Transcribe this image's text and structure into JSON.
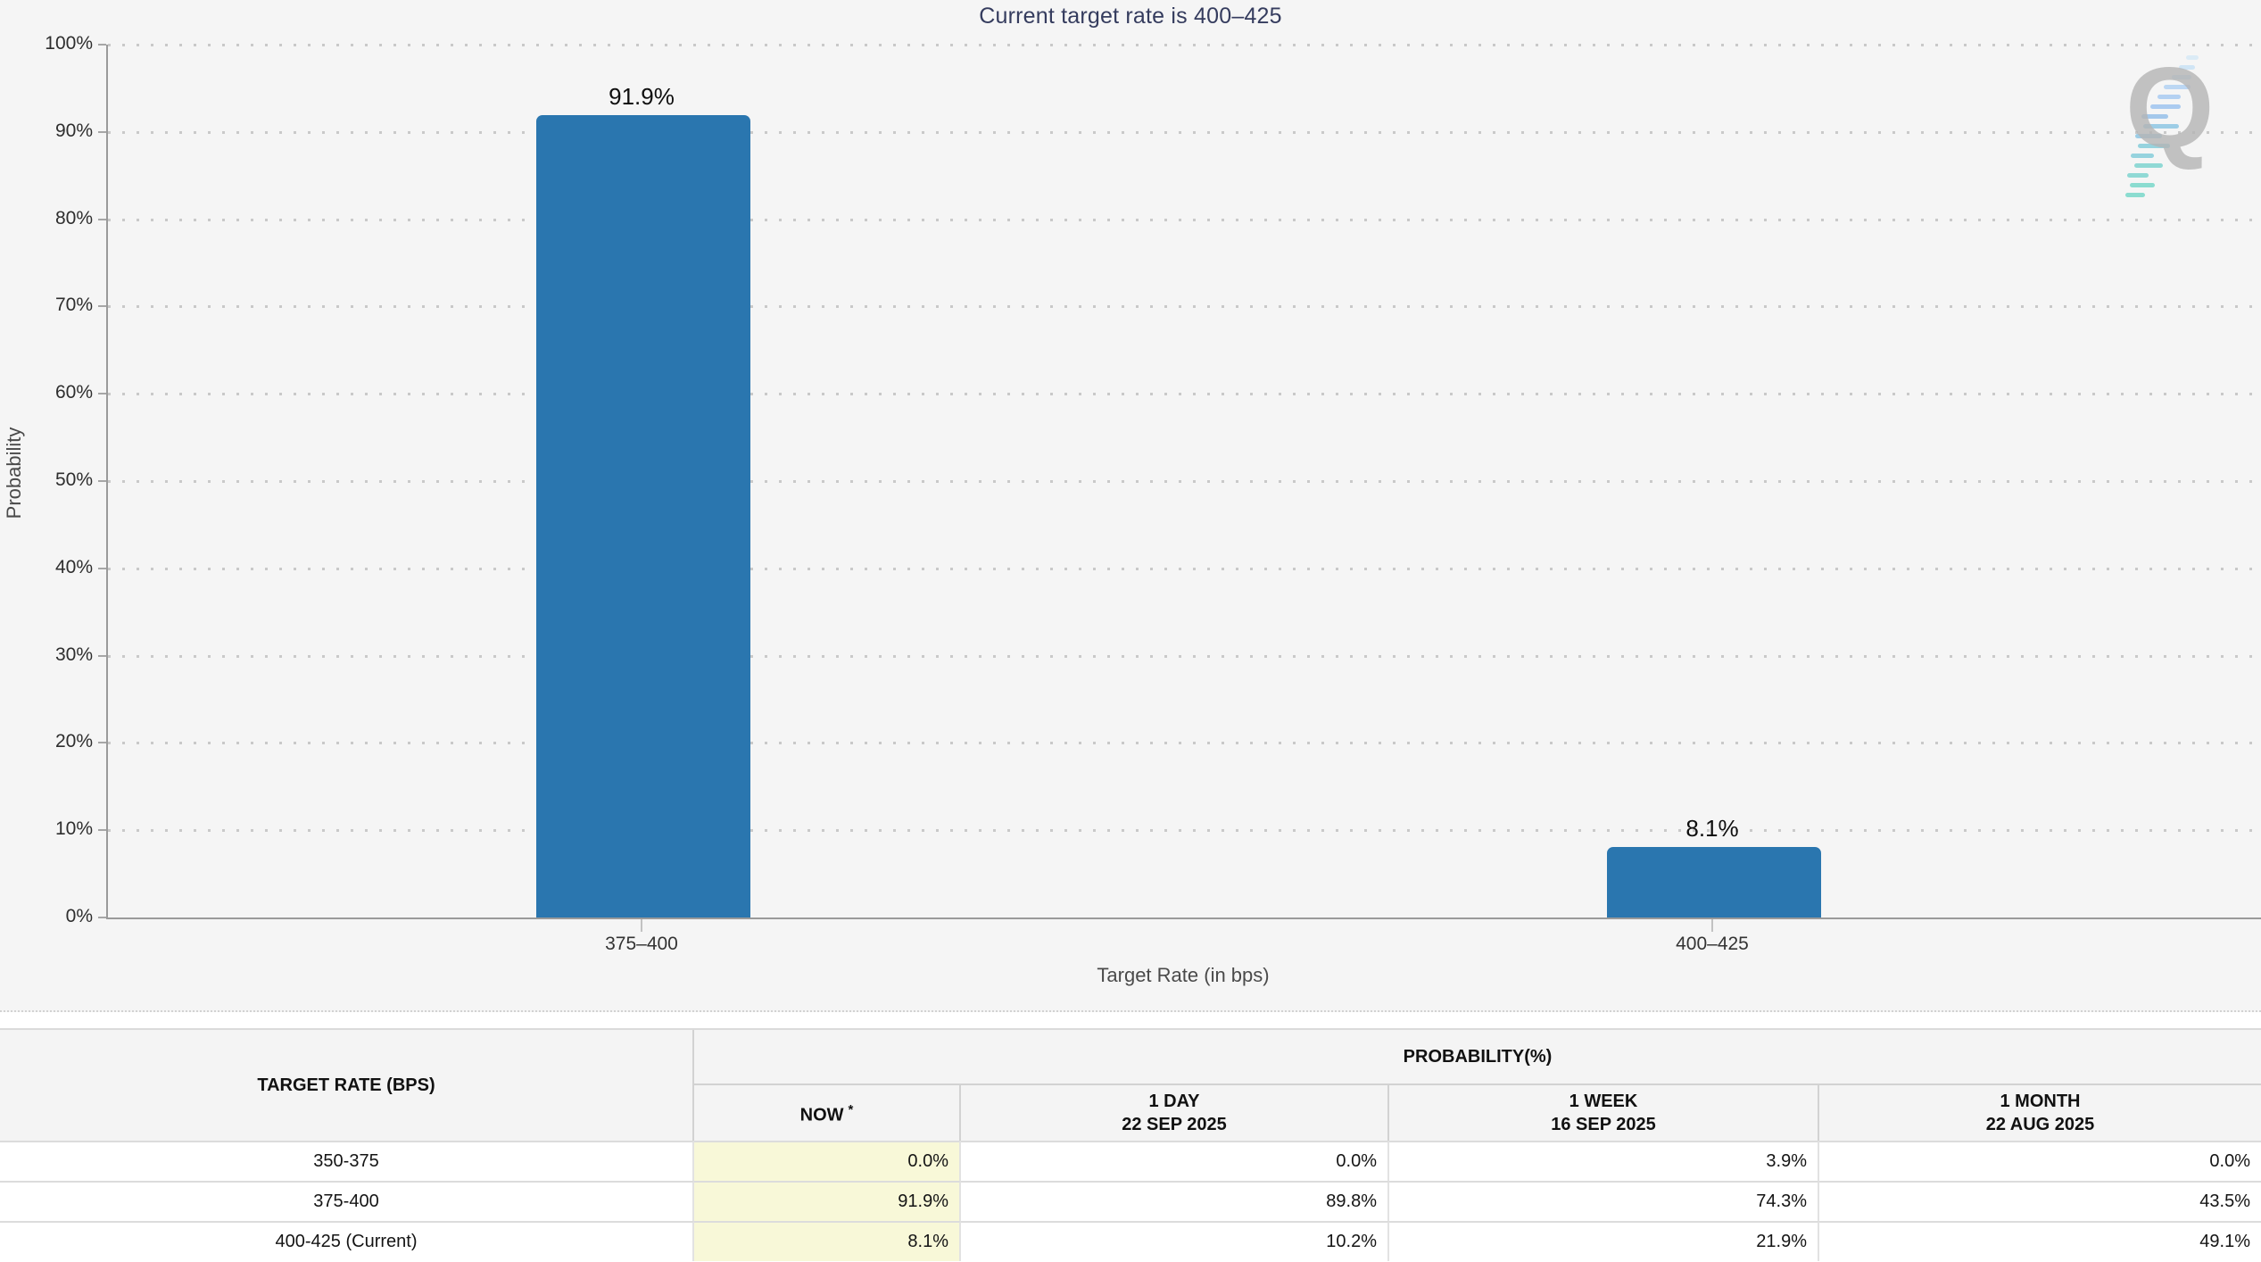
{
  "watermark": {
    "letter": "Q"
  },
  "chart_data": [
    {
      "type": "bar",
      "title": "Current target rate is 400–425",
      "xlabel": "Target Rate (in bps)",
      "ylabel": "Probability",
      "categories": [
        "375–400",
        "400–425"
      ],
      "values": [
        91.9,
        8.1
      ],
      "data_labels": [
        "91.9%",
        "8.1%"
      ],
      "ylim": [
        0,
        100
      ],
      "y_tick_labels": [
        "100%",
        "90%",
        "80%",
        "70%",
        "60%",
        "50%",
        "40%",
        "30%",
        "20%",
        "10%",
        "0%"
      ],
      "grid": "dotted-horizontal",
      "legend": "none",
      "bar_color": "#2a76af",
      "background": "#f5f5f5"
    },
    {
      "type": "table",
      "corner_header": "TARGET RATE (BPS)",
      "group_header": "PROBABILITY(%)",
      "columns": [
        {
          "label": "NOW",
          "sup": "*",
          "date": ""
        },
        {
          "label": "1 DAY",
          "sup": "",
          "date": "22 SEP 2025"
        },
        {
          "label": "1 WEEK",
          "sup": "",
          "date": "16 SEP 2025"
        },
        {
          "label": "1 MONTH",
          "sup": "",
          "date": "22 AUG 2025"
        }
      ],
      "rows": [
        {
          "rate": "350-375",
          "values": [
            "0.0%",
            "0.0%",
            "3.9%",
            "0.0%"
          ]
        },
        {
          "rate": "375-400",
          "values": [
            "91.9%",
            "89.8%",
            "74.3%",
            "43.5%"
          ]
        },
        {
          "rate": "400-425 (Current)",
          "values": [
            "8.1%",
            "10.2%",
            "21.9%",
            "49.1%"
          ]
        }
      ],
      "highlight_column": "NOW",
      "highlight_color": "#f8f8d8"
    }
  ]
}
